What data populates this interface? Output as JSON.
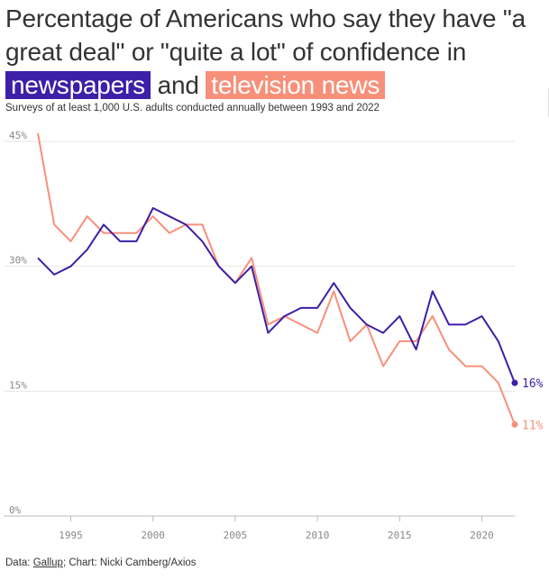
{
  "title": {
    "part1": "Percentage of Americans who say they have \"a great deal\" or \"quite a lot\" of confidence in",
    "hl1": "newspapers",
    "mid": "and",
    "hl2": "television news"
  },
  "subtitle": "Surveys of at least 1,000 U.S. adults conducted annually between 1993 and 2022",
  "footer": {
    "prefix": "Data: ",
    "source": "Gallup",
    "suffix": "; Chart: Nicki Camberg/Axios"
  },
  "colors": {
    "newspapers": "#3d1fa8",
    "television": "#f7907a"
  },
  "chart_data": {
    "type": "line",
    "x": [
      1993,
      1994,
      1995,
      1996,
      1997,
      1998,
      1999,
      2000,
      2001,
      2002,
      2003,
      2004,
      2005,
      2006,
      2007,
      2008,
      2009,
      2010,
      2011,
      2012,
      2013,
      2014,
      2015,
      2016,
      2017,
      2018,
      2019,
      2020,
      2021,
      2022
    ],
    "series": [
      {
        "name": "newspapers",
        "color": "#3d1fa8",
        "end_label": "16%",
        "values": [
          31,
          29,
          30,
          32,
          35,
          33,
          33,
          37,
          36,
          35,
          33,
          30,
          28,
          30,
          22,
          24,
          25,
          25,
          28,
          25,
          23,
          22,
          24,
          20,
          27,
          23,
          23,
          24,
          21,
          16
        ]
      },
      {
        "name": "television news",
        "color": "#f7907a",
        "end_label": "11%",
        "values": [
          46,
          35,
          33,
          36,
          34,
          34,
          34,
          36,
          34,
          35,
          35,
          30,
          28,
          31,
          23,
          24,
          23,
          22,
          27,
          21,
          23,
          18,
          21,
          21,
          24,
          20,
          18,
          18,
          16,
          11
        ]
      }
    ],
    "xticks": [
      "1995",
      "2000",
      "2005",
      "2010",
      "2015",
      "2020"
    ],
    "xtick_values": [
      1995,
      2000,
      2005,
      2010,
      2015,
      2020
    ],
    "yticks": [
      "0%",
      "15%",
      "30%",
      "45%"
    ],
    "ytick_values": [
      0,
      15,
      30,
      45
    ],
    "xlim": [
      1993,
      2022
    ],
    "ylim": [
      0,
      45
    ],
    "grid": true
  }
}
